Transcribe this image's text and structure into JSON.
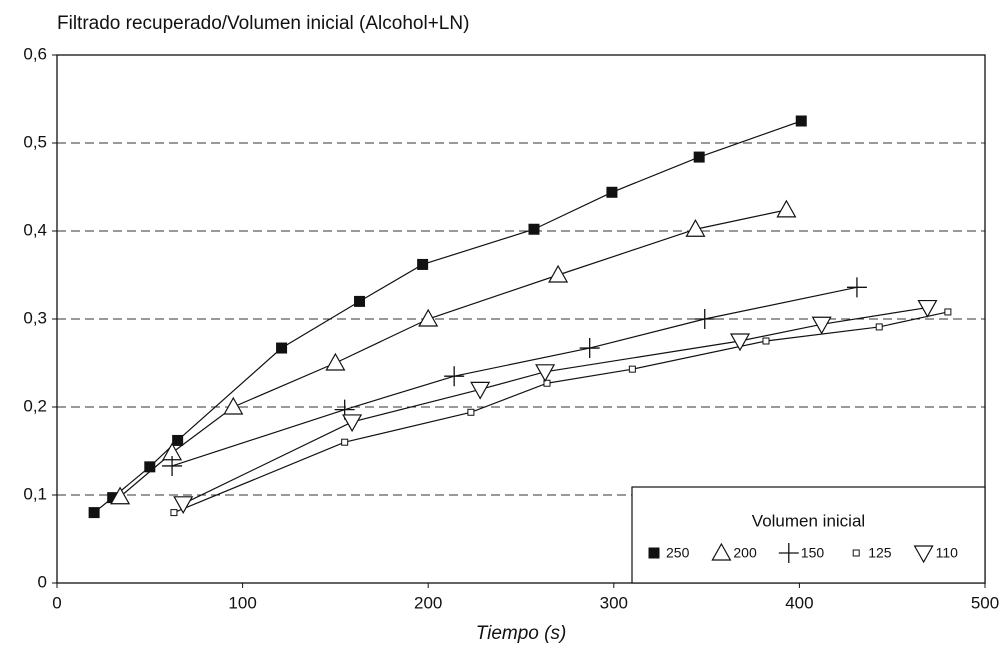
{
  "chart_data": {
    "type": "line",
    "title": "Filtrado recuperado/Volumen inicial (Alcohol+LN)",
    "x_label": "Tiempo (s)",
    "legend_title": "Volumen inicial",
    "legend_position": "lower right",
    "grid": true,
    "xlim": [
      0,
      500
    ],
    "xticks": [
      0,
      100,
      200,
      300,
      400,
      500
    ],
    "ylim": [
      0,
      0.6
    ],
    "yticks": [
      0,
      {
        "value": 0.1,
        "label": "0,1"
      },
      {
        "value": 0.2,
        "label": "0,2"
      },
      {
        "value": 0.3,
        "label": "0,3"
      },
      {
        "value": 0.4,
        "label": "0,4"
      },
      {
        "value": 0.5,
        "label": "0,5"
      },
      {
        "value": 0.6,
        "label": "0,6"
      }
    ],
    "series": [
      {
        "name": "250",
        "color": "#111111",
        "marker": "square-filled",
        "x": [
          20,
          30,
          50,
          65,
          121,
          163,
          197,
          257,
          299,
          346,
          401
        ],
        "values": [
          0.08,
          0.097,
          0.132,
          0.162,
          0.267,
          0.32,
          0.362,
          0.402,
          0.444,
          0.484,
          0.525
        ]
      },
      {
        "name": "200",
        "color": "#111111",
        "marker": "triangle",
        "x": [
          34,
          62,
          95,
          150,
          200,
          270,
          344,
          393
        ],
        "values": [
          0.098,
          0.148,
          0.2,
          0.25,
          0.3,
          0.35,
          0.402,
          0.424
        ]
      },
      {
        "name": "150",
        "color": "#111111",
        "marker": "plus",
        "x": [
          62,
          155,
          214,
          287,
          349,
          431
        ],
        "values": [
          0.133,
          0.197,
          0.235,
          0.267,
          0.3,
          0.336
        ]
      },
      {
        "name": "125",
        "color": "#111111",
        "marker": "square-small",
        "x": [
          63,
          155,
          223,
          264,
          310,
          382,
          443,
          480
        ],
        "values": [
          0.08,
          0.16,
          0.194,
          0.227,
          0.243,
          0.275,
          0.291,
          0.308
        ]
      },
      {
        "name": "110",
        "color": "#111111",
        "marker": "triangle-down",
        "x": [
          68,
          159,
          228,
          263,
          368,
          412,
          469
        ],
        "values": [
          0.09,
          0.183,
          0.22,
          0.24,
          0.275,
          0.294,
          0.313
        ]
      }
    ]
  }
}
